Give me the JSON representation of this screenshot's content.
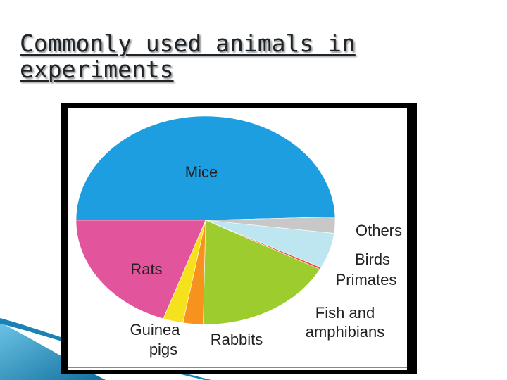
{
  "slide": {
    "title": "Commonly used animals in experiments"
  },
  "chart_data": {
    "type": "pie",
    "title": "",
    "slices": [
      {
        "label": "Mice",
        "value": 49.5,
        "color": "#1d9ee0"
      },
      {
        "label": "Others",
        "value": 2.5,
        "color": "#c8c8c8"
      },
      {
        "label": "Birds",
        "value": 5.5,
        "color": "#bde6f0"
      },
      {
        "label": "Primates",
        "value": 0.3,
        "color": "#e8503c"
      },
      {
        "label": "Fish and amphibians",
        "value": 17.5,
        "color": "#9ccc2e"
      },
      {
        "label": "Rabbits",
        "value": 2.5,
        "color": "#f7921e"
      },
      {
        "label": "Guinea pigs",
        "value": 2.5,
        "color": "#f6e21c"
      },
      {
        "label": "Rats",
        "value": 19.7,
        "color": "#e2559c"
      }
    ]
  },
  "decoration": {
    "accent_color": "#1a82b4"
  }
}
